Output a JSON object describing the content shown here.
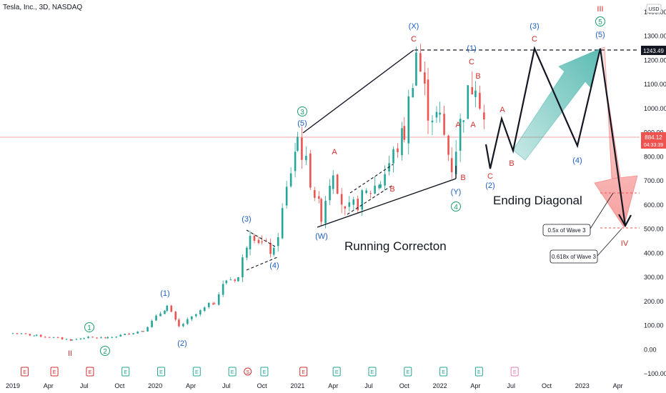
{
  "header": {
    "title": "Tesla, Inc., 3D, NASDAQ",
    "currency": "USD"
  },
  "colors": {
    "up": "#26a69a",
    "down": "#ef5350",
    "blue": "#1f5fbf",
    "red": "#d32f2f",
    "green": "#1e9e6b",
    "price_line": "#f28b8b",
    "tag_dark": "#131722",
    "tag_red": "#ef5350",
    "event_e": "#d32f2f",
    "event_div": "#26a69a"
  },
  "price_tags": {
    "top": "1243.49",
    "current": "884.12",
    "countdown": "04:33:39"
  },
  "chart_data": {
    "type": "candlestick",
    "title": "Tesla, Inc., 3D, NASDAQ",
    "y_unit": "USD",
    "ylim": [
      -100,
      1450
    ],
    "x_ticks": [
      "2019",
      "Apr",
      "Jul",
      "Oct",
      "2020",
      "Apr",
      "Jul",
      "Oct",
      "2021",
      "Apr",
      "Jul",
      "Oct",
      "2022",
      "Apr",
      "Jul",
      "Oct",
      "2023",
      "Apr"
    ],
    "y_ticks": [
      "1400.00",
      "1300.00",
      "1200.00",
      "1100.00",
      "1000.00",
      "900.00",
      "800.00",
      "700.00",
      "600.00",
      "500.00",
      "400.00",
      "300.00",
      "200.00",
      "100.00",
      "0.00",
      "−100.00"
    ],
    "price_path": [
      {
        "date": "2019-01",
        "close": 68
      },
      {
        "date": "2019-03",
        "close": 58
      },
      {
        "date": "2019-06",
        "close": 40
      },
      {
        "date": "2019-07",
        "close": 50
      },
      {
        "date": "2019-09",
        "close": 48
      },
      {
        "date": "2019-12",
        "close": 80
      },
      {
        "date": "2020-02",
        "close": 180
      },
      {
        "date": "2020-03",
        "close": 95
      },
      {
        "date": "2020-06",
        "close": 200
      },
      {
        "date": "2020-07",
        "close": 290
      },
      {
        "date": "2020-08",
        "close": 300
      },
      {
        "date": "2020-09",
        "close": 500
      },
      {
        "date": "2020-10",
        "close": 440
      },
      {
        "date": "2020-11",
        "close": 400
      },
      {
        "date": "2021-01",
        "close": 880
      },
      {
        "date": "2021-03",
        "close": 560
      },
      {
        "date": "2021-04",
        "close": 760
      },
      {
        "date": "2021-05",
        "close": 560
      },
      {
        "date": "2021-08",
        "close": 700
      },
      {
        "date": "2021-10",
        "close": 900
      },
      {
        "date": "2021-11",
        "close": 1240
      },
      {
        "date": "2021-12",
        "close": 1000
      },
      {
        "date": "2022-01",
        "close": 950
      },
      {
        "date": "2022-02",
        "close": 760
      },
      {
        "date": "2022-03",
        "close": 1000
      },
      {
        "date": "2022-04",
        "close": 1140
      },
      {
        "date": "2022-05",
        "close": 884
      }
    ],
    "projection": [
      {
        "label": "C",
        "date": "2022-05",
        "value": 755
      },
      {
        "label": "A",
        "date": "2022-06",
        "value": 960
      },
      {
        "label": "B",
        "date": "2022-07",
        "value": 840
      },
      {
        "label": "C",
        "date": "2022-09",
        "value": 1243
      },
      {
        "label": "(4)",
        "date": "2022-12",
        "value": 845
      },
      {
        "label": "(5)",
        "date": "2023-03",
        "value": 1243
      },
      {
        "label": "IV",
        "date": "2023-05",
        "value": 505
      }
    ],
    "levels": [
      {
        "label": "0.5x of Wave 3",
        "value": 655
      },
      {
        "label": "0.618x of Wave 3",
        "value": 505
      }
    ]
  },
  "annotations": {
    "running": "Running Correcton",
    "ending": "Ending Diagonal",
    "fib_05": "0.5x of Wave 3",
    "fib_0618": "0.618x of Wave 3"
  },
  "waves": {
    "II": "II",
    "III": "III",
    "IV": "IV",
    "c1": "1",
    "c2": "2",
    "c3": "3",
    "c4": "4",
    "c5": "5",
    "p1": "(1)",
    "p2": "(2)",
    "p3": "(3)",
    "p4": "(4)",
    "p5": "(5)",
    "pW": "(W)",
    "pX": "(X)",
    "pY": "(Y)",
    "A": "A",
    "B": "B",
    "C": "C"
  },
  "events": {
    "earnings": "E",
    "split": "S"
  }
}
